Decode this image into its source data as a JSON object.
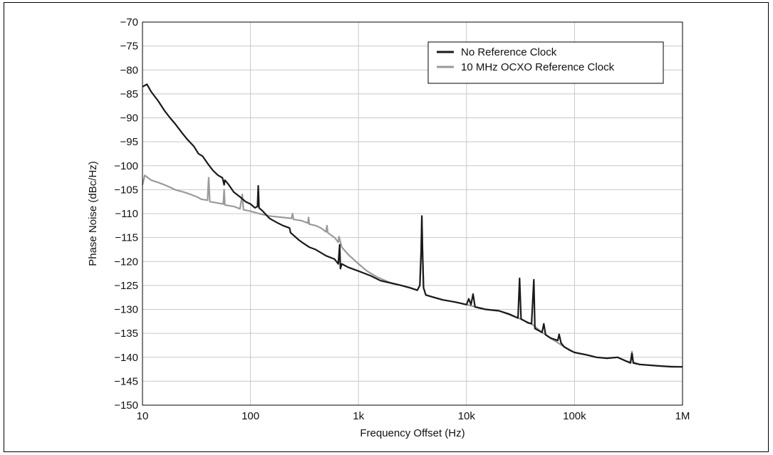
{
  "chart_data": {
    "type": "line",
    "title": "",
    "xlabel": "Frequency Offset (Hz)",
    "ylabel": "Phase Noise (dBc/Hz)",
    "x_scale": "log",
    "xlim": [
      10,
      1000000
    ],
    "ylim": [
      -150,
      -70
    ],
    "grid": true,
    "legend_position": "top-right",
    "x_ticks": [
      {
        "value": 10,
        "label": "10"
      },
      {
        "value": 100,
        "label": "100"
      },
      {
        "value": 1000,
        "label": "1k"
      },
      {
        "value": 10000,
        "label": "10k"
      },
      {
        "value": 100000,
        "label": "100k"
      },
      {
        "value": 1000000,
        "label": "1M"
      }
    ],
    "y_ticks": [
      -70,
      -75,
      -80,
      -85,
      -90,
      -95,
      -100,
      -105,
      -110,
      -115,
      -120,
      -125,
      -130,
      -135,
      -140,
      -145,
      -150
    ],
    "series": [
      {
        "name": "No Reference Clock",
        "color": "#1a1a1a",
        "points": [
          [
            10,
            -83.5
          ],
          [
            11,
            -83
          ],
          [
            12,
            -84.5
          ],
          [
            14,
            -86.5
          ],
          [
            16,
            -88.5
          ],
          [
            18,
            -90
          ],
          [
            20,
            -91.2
          ],
          [
            23,
            -93
          ],
          [
            26,
            -94.5
          ],
          [
            30,
            -96
          ],
          [
            33,
            -97.5
          ],
          [
            36,
            -98
          ],
          [
            40,
            -99.5
          ],
          [
            45,
            -101
          ],
          [
            50,
            -102
          ],
          [
            55,
            -102.5
          ],
          [
            57,
            -104
          ],
          [
            58,
            -103
          ],
          [
            63,
            -104
          ],
          [
            70,
            -105.5
          ],
          [
            80,
            -106.5
          ],
          [
            90,
            -107.5
          ],
          [
            100,
            -108
          ],
          [
            110,
            -108.8
          ],
          [
            116,
            -108.5
          ],
          [
            118,
            -104.2
          ],
          [
            120,
            -108.8
          ],
          [
            130,
            -109.5
          ],
          [
            150,
            -111
          ],
          [
            180,
            -112
          ],
          [
            200,
            -112.5
          ],
          [
            230,
            -113
          ],
          [
            235,
            -114
          ],
          [
            250,
            -114.5
          ],
          [
            280,
            -115.5
          ],
          [
            300,
            -116
          ],
          [
            350,
            -117
          ],
          [
            400,
            -117.5
          ],
          [
            500,
            -118.8
          ],
          [
            600,
            -119.5
          ],
          [
            650,
            -120.5
          ],
          [
            670,
            -116.5
          ],
          [
            680,
            -121.5
          ],
          [
            700,
            -120.5
          ],
          [
            800,
            -121.2
          ],
          [
            1000,
            -122
          ],
          [
            1300,
            -123
          ],
          [
            1600,
            -124
          ],
          [
            2000,
            -124.5
          ],
          [
            2500,
            -125
          ],
          [
            3000,
            -125.5
          ],
          [
            3500,
            -126
          ],
          [
            3700,
            -125
          ],
          [
            3800,
            -118
          ],
          [
            3860,
            -110.5
          ],
          [
            3920,
            -118
          ],
          [
            4000,
            -125.5
          ],
          [
            4200,
            -127
          ],
          [
            5000,
            -127.5
          ],
          [
            6000,
            -128
          ],
          [
            8000,
            -128.5
          ],
          [
            10000,
            -129
          ],
          [
            10500,
            -127.8
          ],
          [
            11000,
            -129
          ],
          [
            11500,
            -126.8
          ],
          [
            12000,
            -129.5
          ],
          [
            15000,
            -130
          ],
          [
            20000,
            -130.3
          ],
          [
            25000,
            -131
          ],
          [
            30000,
            -131.8
          ],
          [
            31000,
            -123.5
          ],
          [
            32000,
            -132
          ],
          [
            37000,
            -132.8
          ],
          [
            40000,
            -133
          ],
          [
            42000,
            -123.8
          ],
          [
            43000,
            -134
          ],
          [
            50000,
            -134.8
          ],
          [
            52000,
            -133
          ],
          [
            54000,
            -135.3
          ],
          [
            60000,
            -136
          ],
          [
            70000,
            -136.5
          ],
          [
            72000,
            -135.2
          ],
          [
            75000,
            -137
          ],
          [
            80000,
            -137.8
          ],
          [
            90000,
            -138.5
          ],
          [
            100000,
            -139
          ],
          [
            130000,
            -139.5
          ],
          [
            160000,
            -140
          ],
          [
            200000,
            -140.2
          ],
          [
            250000,
            -140
          ],
          [
            300000,
            -140.8
          ],
          [
            330000,
            -141.2
          ],
          [
            340000,
            -139.2
          ],
          [
            350000,
            -141.2
          ],
          [
            400000,
            -141.5
          ],
          [
            600000,
            -141.8
          ],
          [
            800000,
            -142
          ],
          [
            1000000,
            -142
          ]
        ]
      },
      {
        "name": "10 MHz OCXO Reference Clock",
        "color": "#9a9a9a",
        "points": [
          [
            10,
            -104
          ],
          [
            10.5,
            -102
          ],
          [
            12,
            -103
          ],
          [
            14,
            -103.5
          ],
          [
            16,
            -104
          ],
          [
            18,
            -104.5
          ],
          [
            20,
            -105
          ],
          [
            24,
            -105.5
          ],
          [
            28,
            -106
          ],
          [
            32,
            -106.5
          ],
          [
            35,
            -107
          ],
          [
            40,
            -107.2
          ],
          [
            41,
            -102.5
          ],
          [
            42,
            -107.5
          ],
          [
            50,
            -107.8
          ],
          [
            56,
            -108
          ],
          [
            57,
            -105
          ],
          [
            58,
            -108.2
          ],
          [
            70,
            -108.5
          ],
          [
            80,
            -109
          ],
          [
            84,
            -106
          ],
          [
            86,
            -109.2
          ],
          [
            100,
            -109.5
          ],
          [
            120,
            -110
          ],
          [
            150,
            -110.5
          ],
          [
            200,
            -110.8
          ],
          [
            240,
            -111
          ],
          [
            245,
            -110
          ],
          [
            250,
            -111.2
          ],
          [
            300,
            -111.5
          ],
          [
            340,
            -112
          ],
          [
            345,
            -110.8
          ],
          [
            350,
            -112.2
          ],
          [
            400,
            -112.5
          ],
          [
            450,
            -113
          ],
          [
            500,
            -113.8
          ],
          [
            510,
            -112.5
          ],
          [
            520,
            -114
          ],
          [
            600,
            -115
          ],
          [
            650,
            -116
          ],
          [
            660,
            -114.8
          ],
          [
            700,
            -117
          ],
          [
            800,
            -118.5
          ],
          [
            1000,
            -120.5
          ],
          [
            1200,
            -122
          ],
          [
            1500,
            -123.3
          ],
          [
            2000,
            -124.5
          ],
          [
            2500,
            -125
          ],
          [
            3000,
            -125.5
          ],
          [
            3500,
            -126
          ],
          [
            3700,
            -125
          ],
          [
            3800,
            -118
          ],
          [
            3860,
            -110.5
          ],
          [
            3920,
            -118
          ],
          [
            4000,
            -125.5
          ],
          [
            4200,
            -127
          ],
          [
            5000,
            -127.5
          ],
          [
            6000,
            -128
          ],
          [
            8000,
            -128.5
          ],
          [
            10000,
            -129
          ],
          [
            15000,
            -130
          ],
          [
            20000,
            -130.3
          ],
          [
            30000,
            -131.8
          ],
          [
            40000,
            -133
          ],
          [
            50000,
            -134.8
          ],
          [
            60000,
            -136
          ],
          [
            80000,
            -137.8
          ],
          [
            100000,
            -139
          ],
          [
            130000,
            -139.5
          ],
          [
            160000,
            -140
          ],
          [
            200000,
            -140.2
          ],
          [
            250000,
            -140
          ],
          [
            300000,
            -140.8
          ],
          [
            330000,
            -141
          ],
          [
            340000,
            -138.8
          ],
          [
            350000,
            -141
          ],
          [
            400000,
            -141.5
          ],
          [
            600000,
            -141.8
          ],
          [
            1000000,
            -142
          ]
        ]
      }
    ]
  }
}
